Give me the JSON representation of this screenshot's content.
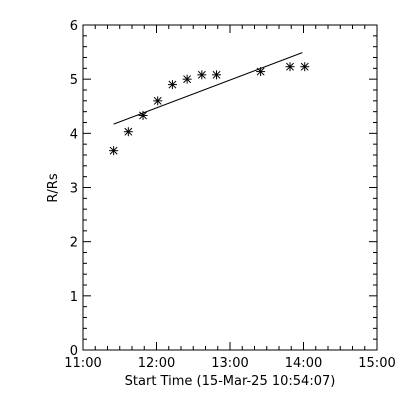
{
  "chart_data": {
    "type": "scatter",
    "title": "",
    "xlabel": "Start Time (15-Mar-25 10:54:07)",
    "ylabel": "R/Rs",
    "xlim": [
      "11:00",
      "15:00"
    ],
    "ylim": [
      0,
      6
    ],
    "x_ticks": [
      "11:00",
      "12:00",
      "13:00",
      "14:00",
      "15:00"
    ],
    "y_ticks": [
      "0",
      "1",
      "2",
      "3",
      "4",
      "5",
      "6"
    ],
    "grid": false,
    "marker": "asterisk",
    "points": [
      {
        "x": "11:25",
        "y": 3.68
      },
      {
        "x": "11:37",
        "y": 4.03
      },
      {
        "x": "11:49",
        "y": 4.33
      },
      {
        "x": "12:01",
        "y": 4.6
      },
      {
        "x": "12:13",
        "y": 4.9
      },
      {
        "x": "12:25",
        "y": 5.0
      },
      {
        "x": "12:37",
        "y": 5.08
      },
      {
        "x": "12:49",
        "y": 5.08
      },
      {
        "x": "13:25",
        "y": 5.14
      },
      {
        "x": "13:49",
        "y": 5.23
      },
      {
        "x": "14:01",
        "y": 5.23
      }
    ],
    "fit_line": [
      {
        "x": "11:25",
        "y": 4.17
      },
      {
        "x": "13:59",
        "y": 5.49
      }
    ]
  }
}
